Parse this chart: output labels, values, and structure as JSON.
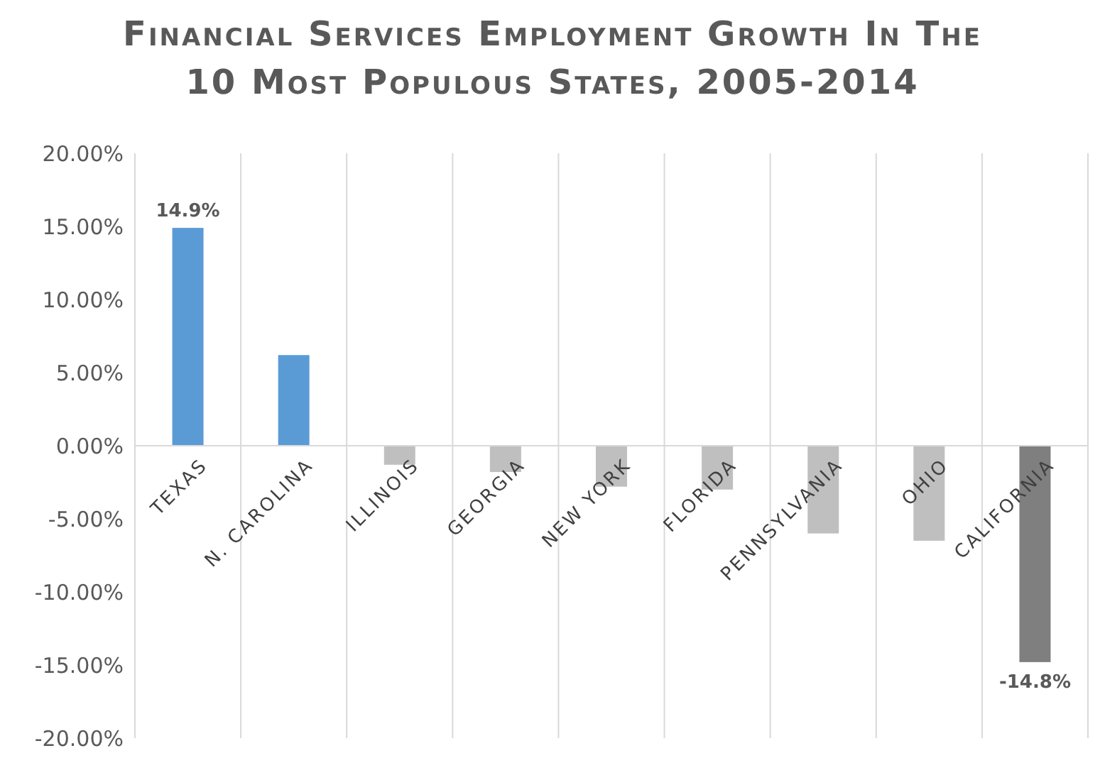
{
  "chart_data": {
    "type": "bar",
    "title": "Financial Services Employment Growth In The 10 Most Populous States, 2005-2014",
    "categories": [
      "TEXAS",
      "N. CAROLINA",
      "ILLINOIS",
      "GEORGIA",
      "NEW YORK",
      "FLORIDA",
      "PENNSYLVANIA",
      "OHIO",
      "CALIFORNIA"
    ],
    "values": [
      14.9,
      6.2,
      -1.3,
      -1.8,
      -2.8,
      -3.0,
      -6.0,
      -6.5,
      -14.8
    ],
    "colors": [
      "#5b9bd5",
      "#5b9bd5",
      "#bfbfbf",
      "#bfbfbf",
      "#bfbfbf",
      "#bfbfbf",
      "#bfbfbf",
      "#bfbfbf",
      "#7f7f7f"
    ],
    "value_labels": [
      "14.9%",
      null,
      null,
      null,
      null,
      null,
      null,
      null,
      "-14.8%"
    ],
    "ylim": [
      -20,
      20
    ],
    "yticks": [
      {
        "value": 20,
        "label": "20.00%"
      },
      {
        "value": 15,
        "label": "15.00%"
      },
      {
        "value": 10,
        "label": "10.00%"
      },
      {
        "value": 5,
        "label": "5.00%"
      },
      {
        "value": 0,
        "label": "0.00%"
      },
      {
        "value": -5,
        "label": "-5.00%"
      },
      {
        "value": -10,
        "label": "-10.00%"
      },
      {
        "value": -15,
        "label": "-15.00%"
      },
      {
        "value": -20,
        "label": "-20.00%"
      }
    ],
    "grid": "x"
  }
}
